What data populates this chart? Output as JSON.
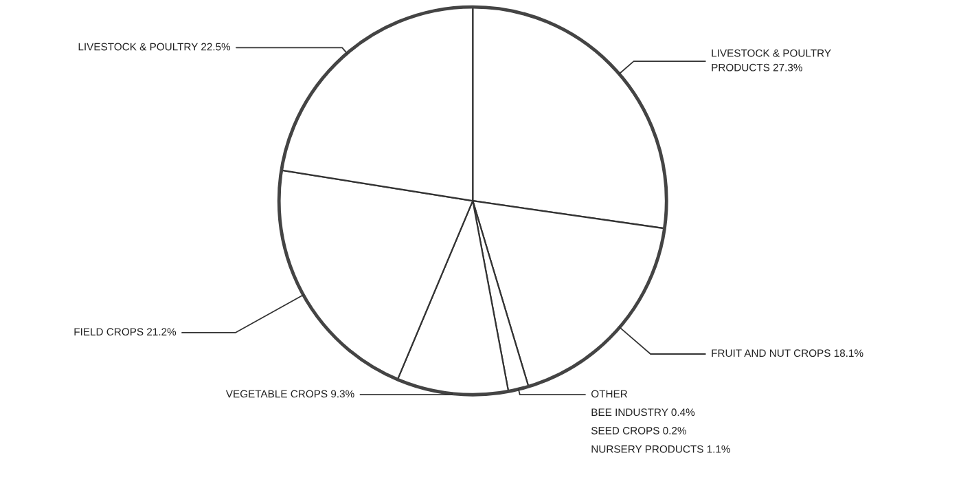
{
  "chart_data": {
    "type": "pie",
    "categories": [
      "LIVESTOCK & POULTRY\nPRODUCTS",
      "FRUIT AND NUT CROPS",
      "OTHER",
      "VEGETABLE CROPS",
      "FIELD CROPS",
      "LIVESTOCK & POULTRY"
    ],
    "values": [
      27.3,
      18.1,
      1.7,
      9.3,
      21.2,
      22.5
    ],
    "value_labels": [
      "27.3%",
      "18.1%",
      null,
      "9.3%",
      "21.2%",
      "22.5%"
    ],
    "colors": [
      "#ffffff",
      "#ffffff",
      "#ffffff",
      "#ffffff",
      "#ffffff",
      "#ffffff"
    ],
    "annotations": [
      "BEE INDUSTRY 0.4%",
      "SEED CROPS 0.2%",
      "NURSERY PRODUCTS 1.1%"
    ]
  }
}
